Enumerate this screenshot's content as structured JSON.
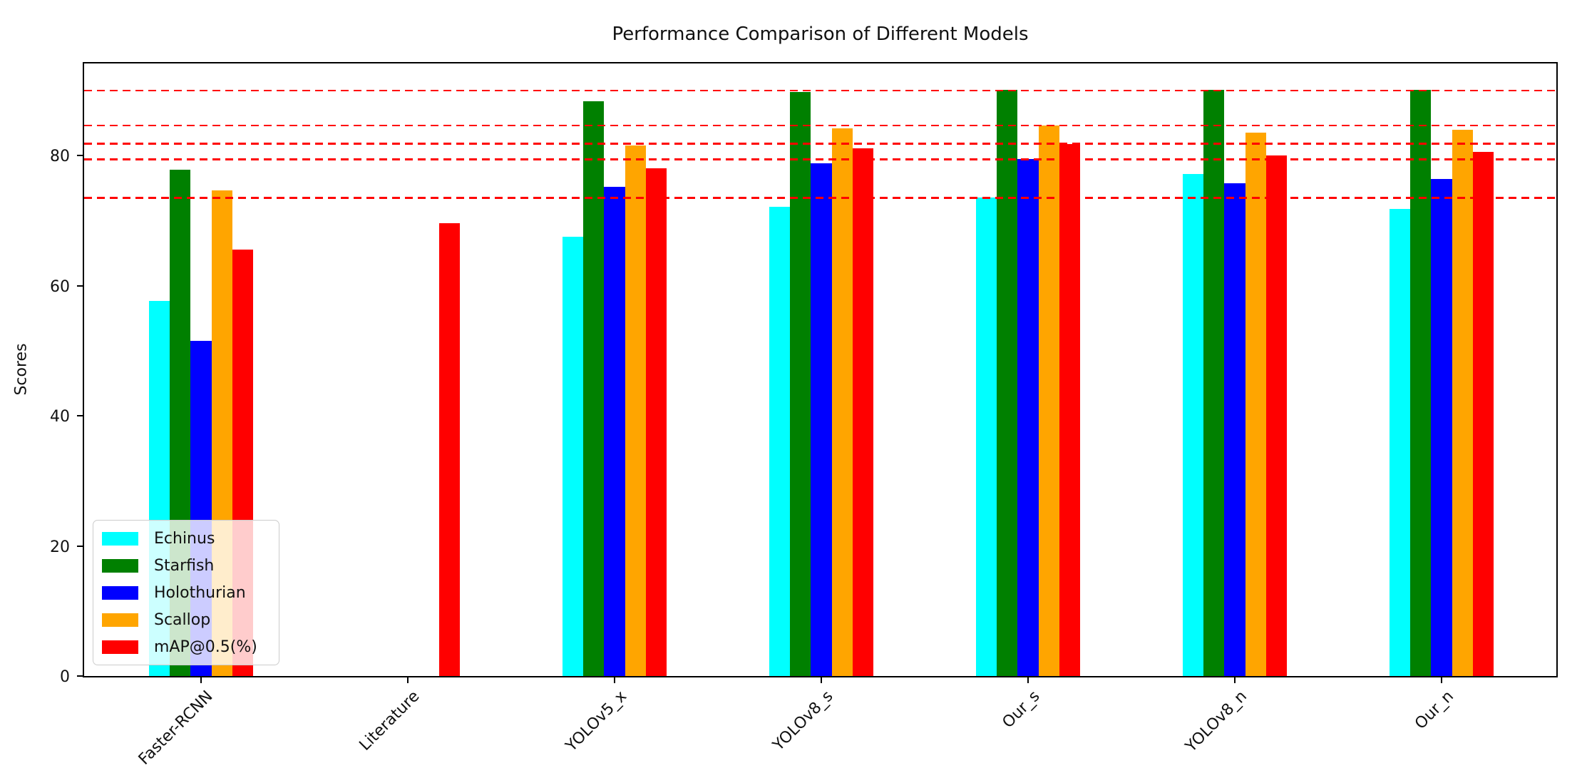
{
  "chart_data": {
    "type": "bar",
    "title": "Performance Comparison of Different Models",
    "xlabel": "",
    "ylabel": "Scores",
    "categories": [
      "Faster-RCNN",
      "Literature",
      "YOLOv5_x",
      "YOLOv8_s",
      "Our_s",
      "YOLOv8_n",
      "Our_n"
    ],
    "series": [
      {
        "name": "Echinus",
        "color": "#00FFFF",
        "values": [
          57.6,
          null,
          67.5,
          72.1,
          73.5,
          77.2,
          71.8
        ]
      },
      {
        "name": "Starfish",
        "color": "#008000",
        "values": [
          77.8,
          null,
          88.3,
          89.8,
          90.1,
          90.1,
          90.1
        ]
      },
      {
        "name": "Holothurian",
        "color": "#0000FF",
        "values": [
          51.5,
          null,
          75.2,
          78.8,
          79.4,
          75.7,
          76.4
        ]
      },
      {
        "name": "Scallop",
        "color": "#FFA500",
        "values": [
          74.6,
          null,
          81.5,
          84.2,
          84.6,
          83.5,
          84.0
        ]
      },
      {
        "name": "mAP@0.5(%)",
        "color": "#FF0000",
        "values": [
          65.5,
          69.6,
          78.0,
          81.1,
          81.8,
          80.0,
          80.5
        ]
      }
    ],
    "reference_lines": {
      "color": "#FF0000",
      "style": "dashed",
      "values": [
        73.5,
        79.4,
        81.8,
        84.6,
        90.0
      ]
    },
    "yticks": [
      0,
      20,
      40,
      60,
      80
    ],
    "ylim": [
      0,
      94.6
    ],
    "grid": false,
    "legend_position": "lower left",
    "x_tick_rotation_deg": 45
  }
}
